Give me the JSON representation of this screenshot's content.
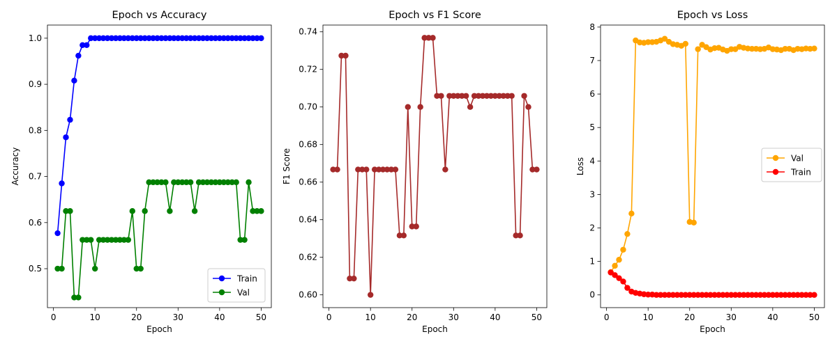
{
  "chart_data": [
    {
      "type": "line",
      "title": "Epoch vs Accuracy",
      "xlabel": "Epoch",
      "ylabel": "Accuracy",
      "xlim": [
        -1.45,
        52.45
      ],
      "ylim": [
        0.4155,
        1.0285
      ],
      "xticks": [
        0,
        10,
        20,
        30,
        40,
        50
      ],
      "yticks": [
        0.5,
        0.6,
        0.7,
        0.8,
        0.9,
        1.0
      ],
      "ytick_labels": [
        "0.5",
        "0.6",
        "0.7",
        "0.8",
        "0.9",
        "1.0"
      ],
      "legend_position": "lower-right",
      "grid": false,
      "series": [
        {
          "name": "Train",
          "color": "#0000ff",
          "x": [
            1,
            2,
            3,
            4,
            5,
            6,
            7,
            8,
            9,
            10,
            11,
            12,
            13,
            14,
            15,
            16,
            17,
            18,
            19,
            20,
            21,
            22,
            23,
            24,
            25,
            26,
            27,
            28,
            29,
            30,
            31,
            32,
            33,
            34,
            35,
            36,
            37,
            38,
            39,
            40,
            41,
            42,
            43,
            44,
            45,
            46,
            47,
            48,
            49,
            50
          ],
          "y": [
            0.577,
            0.685,
            0.785,
            0.823,
            0.908,
            0.962,
            0.985,
            0.985,
            1.0,
            1.0,
            1.0,
            1.0,
            1.0,
            1.0,
            1.0,
            1.0,
            1.0,
            1.0,
            1.0,
            1.0,
            1.0,
            1.0,
            1.0,
            1.0,
            1.0,
            1.0,
            1.0,
            1.0,
            1.0,
            1.0,
            1.0,
            1.0,
            1.0,
            1.0,
            1.0,
            1.0,
            1.0,
            1.0,
            1.0,
            1.0,
            1.0,
            1.0,
            1.0,
            1.0,
            1.0,
            1.0,
            1.0,
            1.0,
            1.0,
            1.0
          ]
        },
        {
          "name": "Val",
          "color": "#008000",
          "x": [
            1,
            2,
            3,
            4,
            5,
            6,
            7,
            8,
            9,
            10,
            11,
            12,
            13,
            14,
            15,
            16,
            17,
            18,
            19,
            20,
            21,
            22,
            23,
            24,
            25,
            26,
            27,
            28,
            29,
            30,
            31,
            32,
            33,
            34,
            35,
            36,
            37,
            38,
            39,
            40,
            41,
            42,
            43,
            44,
            45,
            46,
            47,
            48,
            49,
            50
          ],
          "y": [
            0.5,
            0.5,
            0.625,
            0.625,
            0.4375,
            0.4375,
            0.5625,
            0.5625,
            0.5625,
            0.5,
            0.5625,
            0.5625,
            0.5625,
            0.5625,
            0.5625,
            0.5625,
            0.5625,
            0.5625,
            0.625,
            0.5,
            0.5,
            0.625,
            0.6875,
            0.6875,
            0.6875,
            0.6875,
            0.6875,
            0.625,
            0.6875,
            0.6875,
            0.6875,
            0.6875,
            0.6875,
            0.625,
            0.6875,
            0.6875,
            0.6875,
            0.6875,
            0.6875,
            0.6875,
            0.6875,
            0.6875,
            0.6875,
            0.6875,
            0.5625,
            0.5625,
            0.6875,
            0.625,
            0.625,
            0.625
          ]
        }
      ]
    },
    {
      "type": "line",
      "title": "Epoch vs F1 Score",
      "xlabel": "Epoch",
      "ylabel": "F1 Score",
      "xlim": [
        -1.45,
        52.45
      ],
      "ylim": [
        0.5932,
        0.7436
      ],
      "xticks": [
        0,
        10,
        20,
        30,
        40,
        50
      ],
      "yticks": [
        0.6,
        0.62,
        0.64,
        0.66,
        0.68,
        0.7,
        0.72,
        0.74
      ],
      "ytick_labels": [
        "0.60",
        "0.62",
        "0.64",
        "0.66",
        "0.68",
        "0.70",
        "0.72",
        "0.74"
      ],
      "grid": false,
      "series": [
        {
          "color": "#a52a2a",
          "x": [
            1,
            2,
            3,
            4,
            5,
            6,
            7,
            8,
            9,
            10,
            11,
            12,
            13,
            14,
            15,
            16,
            17,
            18,
            19,
            20,
            21,
            22,
            23,
            24,
            25,
            26,
            27,
            28,
            29,
            30,
            31,
            32,
            33,
            34,
            35,
            36,
            37,
            38,
            39,
            40,
            41,
            42,
            43,
            44,
            45,
            46,
            47,
            48,
            49,
            50
          ],
          "y": [
            0.6667,
            0.6667,
            0.7273,
            0.7273,
            0.6087,
            0.6087,
            0.6667,
            0.6667,
            0.6667,
            0.6,
            0.6667,
            0.6667,
            0.6667,
            0.6667,
            0.6667,
            0.6667,
            0.6316,
            0.6316,
            0.7,
            0.6364,
            0.6364,
            0.7,
            0.7368,
            0.7368,
            0.7368,
            0.7059,
            0.7059,
            0.6667,
            0.7059,
            0.7059,
            0.7059,
            0.7059,
            0.7059,
            0.7,
            0.7059,
            0.7059,
            0.7059,
            0.7059,
            0.7059,
            0.7059,
            0.7059,
            0.7059,
            0.7059,
            0.7059,
            0.6316,
            0.6316,
            0.7059,
            0.7,
            0.6667,
            0.6667
          ]
        }
      ]
    },
    {
      "type": "line",
      "title": "Epoch vs Loss",
      "xlabel": "Epoch",
      "ylabel": "Loss",
      "xlim": [
        -1.45,
        52.45
      ],
      "ylim": [
        -0.38,
        8.06
      ],
      "xticks": [
        0,
        10,
        20,
        30,
        40,
        50
      ],
      "yticks": [
        0,
        1,
        2,
        3,
        4,
        5,
        6,
        7,
        8
      ],
      "ytick_labels": [
        "0",
        "1",
        "2",
        "3",
        "4",
        "5",
        "6",
        "7",
        "8"
      ],
      "legend_position": "center-right",
      "grid": false,
      "series": [
        {
          "name": "Val",
          "color": "#ffa500",
          "x": [
            1,
            2,
            3,
            4,
            5,
            6,
            7,
            8,
            9,
            10,
            11,
            12,
            13,
            14,
            15,
            16,
            17,
            18,
            19,
            20,
            21,
            22,
            23,
            24,
            25,
            26,
            27,
            28,
            29,
            30,
            31,
            32,
            33,
            34,
            35,
            36,
            37,
            38,
            39,
            40,
            41,
            42,
            43,
            44,
            45,
            46,
            47,
            48,
            49,
            50
          ],
          "y": [
            0.68,
            0.87,
            1.05,
            1.35,
            1.82,
            2.43,
            7.6,
            7.54,
            7.53,
            7.55,
            7.55,
            7.56,
            7.6,
            7.65,
            7.56,
            7.49,
            7.47,
            7.44,
            7.5,
            2.18,
            2.16,
            7.34,
            7.47,
            7.4,
            7.33,
            7.37,
            7.38,
            7.33,
            7.29,
            7.34,
            7.34,
            7.41,
            7.38,
            7.36,
            7.35,
            7.35,
            7.34,
            7.35,
            7.39,
            7.34,
            7.33,
            7.31,
            7.35,
            7.35,
            7.31,
            7.35,
            7.34,
            7.36,
            7.35,
            7.36
          ]
        },
        {
          "name": "Train",
          "color": "#ff0000",
          "x": [
            1,
            2,
            3,
            4,
            5,
            6,
            7,
            8,
            9,
            10,
            11,
            12,
            13,
            14,
            15,
            16,
            17,
            18,
            19,
            20,
            21,
            22,
            23,
            24,
            25,
            26,
            27,
            28,
            29,
            30,
            31,
            32,
            33,
            34,
            35,
            36,
            37,
            38,
            39,
            40,
            41,
            42,
            43,
            44,
            45,
            46,
            47,
            48,
            49,
            50
          ],
          "y": [
            0.67,
            0.59,
            0.5,
            0.4,
            0.21,
            0.1,
            0.06,
            0.04,
            0.02,
            0.01,
            0.01,
            0.0,
            0.0,
            0.0,
            0.0,
            0.0,
            0.0,
            0.0,
            0.0,
            0.0,
            0.0,
            0.0,
            0.0,
            0.0,
            0.0,
            0.0,
            0.0,
            0.0,
            0.0,
            0.0,
            0.0,
            0.0,
            0.0,
            0.0,
            0.0,
            0.0,
            0.0,
            0.0,
            0.0,
            0.0,
            0.0,
            0.0,
            0.0,
            0.0,
            0.0,
            0.0,
            0.0,
            0.0,
            0.0,
            0.0
          ]
        }
      ]
    }
  ]
}
